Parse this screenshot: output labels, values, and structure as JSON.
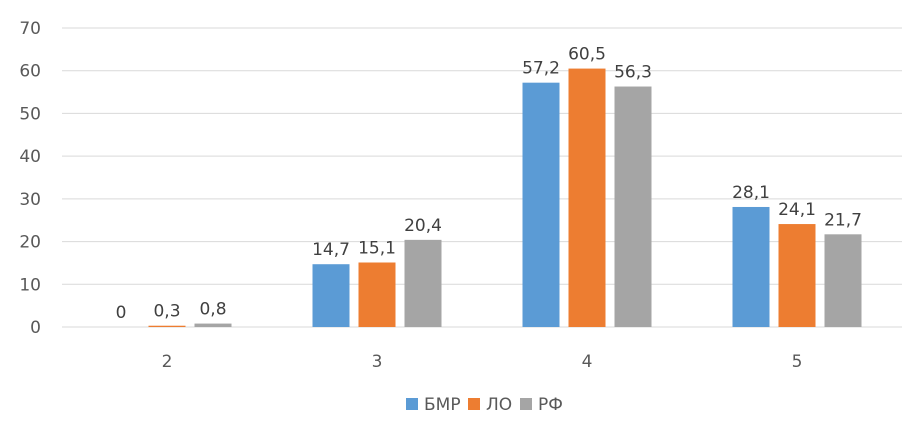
{
  "chart_data": {
    "type": "bar",
    "title": "",
    "xlabel": "",
    "ylabel": "",
    "categories": [
      "2",
      "3",
      "4",
      "5"
    ],
    "series": [
      {
        "name": "БМР",
        "values": [
          0,
          14.7,
          57.2,
          28.1
        ],
        "labels": [
          "0",
          "14,7",
          "57,2",
          "28,1"
        ],
        "color": "#5B9BD5"
      },
      {
        "name": "ЛО",
        "values": [
          0.3,
          15.1,
          60.5,
          24.1
        ],
        "labels": [
          "0,3",
          "15,1",
          "60,5",
          "24,1"
        ],
        "color": "#ED7D31"
      },
      {
        "name": "РФ",
        "values": [
          0.8,
          20.4,
          56.3,
          21.7
        ],
        "labels": [
          "0,8",
          "20,4",
          "56,3",
          "21,7"
        ],
        "color": "#A5A5A5"
      }
    ],
    "ylim": [
      0,
      70
    ],
    "yticks": [
      "0",
      "10",
      "20",
      "30",
      "40",
      "50",
      "60",
      "70"
    ],
    "grid": true,
    "legend": "bottom",
    "gridline_color": "#D9D9D9"
  }
}
